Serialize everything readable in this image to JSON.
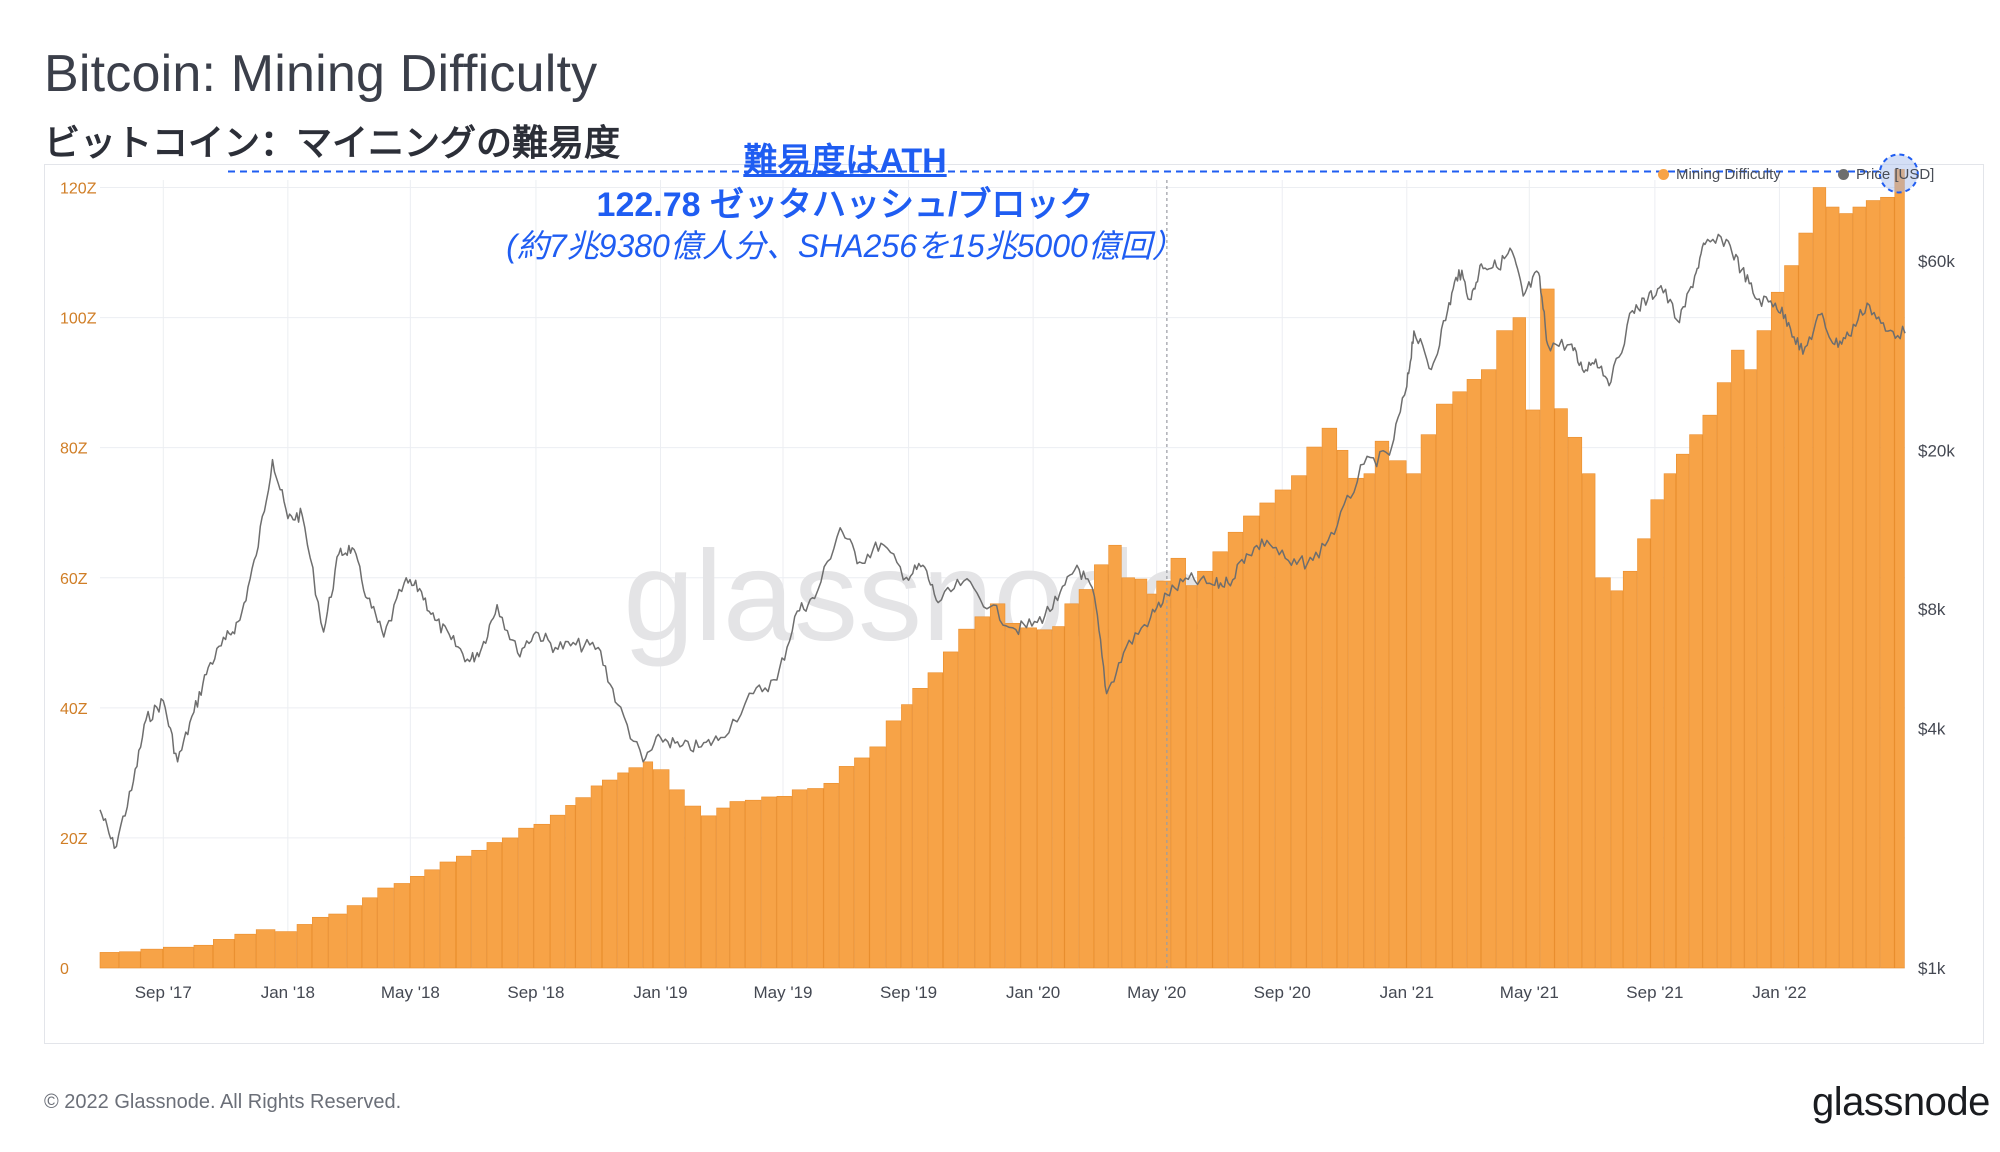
{
  "header": {
    "title": "Bitcoin: Mining Difficulty",
    "subtitle": "ビットコイン：マイニングの難易度"
  },
  "annotation": {
    "line1": "難易度はATH",
    "line2": "122.78 ゼッタハッシュ/ブロック",
    "line3": "(約7兆9380億人分、SHA256を15兆5000億回）"
  },
  "legend": {
    "difficulty_label": "Mining Difficulty",
    "price_label": "Price [USD]"
  },
  "colors": {
    "difficulty": "#f7a347",
    "difficulty_edge": "#e98d2c",
    "price": "#6e6e6e",
    "annotation": "#1f5df2",
    "grid": "#eceef2",
    "watermark": "#e4e4e6"
  },
  "watermark": "glassnode",
  "footer": {
    "copyright": "© 2022 Glassnode. All Rights Reserved.",
    "logo": "glassnode"
  },
  "chart_data": {
    "type": "bar",
    "x_ticks": [
      "Sep '17",
      "Jan '18",
      "May '18",
      "Sep '18",
      "Jan '19",
      "May '19",
      "Sep '19",
      "Jan '20",
      "May '20",
      "Sep '20",
      "Jan '21",
      "May '21",
      "Sep '21",
      "Jan '22"
    ],
    "x_range": [
      "2017-07-01",
      "2022-05-04"
    ],
    "y_left": {
      "ticks": [
        "0",
        "20Z",
        "40Z",
        "60Z",
        "80Z",
        "100Z",
        "120Z"
      ],
      "ylim": [
        0,
        120
      ]
    },
    "y_right": {
      "ticks": [
        "$1k",
        "$4k",
        "$8k",
        "$20k",
        "$60k"
      ],
      "scale": "log",
      "ylim": [
        1000,
        60000
      ]
    },
    "ath_value": 122.78,
    "vertical_marker_date": "2020-05-11",
    "series": [
      {
        "name": "Mining Difficulty",
        "type": "bar",
        "axis": "left",
        "points": [
          [
            "2017-07-01",
            2.4
          ],
          [
            "2017-07-20",
            2.5
          ],
          [
            "2017-08-10",
            2.9
          ],
          [
            "2017-09-01",
            3.2
          ],
          [
            "2017-10-01",
            3.5
          ],
          [
            "2017-10-20",
            4.4
          ],
          [
            "2017-11-10",
            5.2
          ],
          [
            "2017-12-01",
            5.9
          ],
          [
            "2017-12-20",
            5.6
          ],
          [
            "2018-01-10",
            6.7
          ],
          [
            "2018-01-25",
            7.8
          ],
          [
            "2018-02-10",
            8.3
          ],
          [
            "2018-02-28",
            9.6
          ],
          [
            "2018-03-15",
            10.8
          ],
          [
            "2018-03-30",
            12.3
          ],
          [
            "2018-04-15",
            13.0
          ],
          [
            "2018-05-01",
            14.1
          ],
          [
            "2018-05-15",
            15.1
          ],
          [
            "2018-05-30",
            16.3
          ],
          [
            "2018-06-15",
            17.2
          ],
          [
            "2018-06-30",
            18.1
          ],
          [
            "2018-07-15",
            19.3
          ],
          [
            "2018-07-30",
            20.0
          ],
          [
            "2018-08-15",
            21.5
          ],
          [
            "2018-08-30",
            22.1
          ],
          [
            "2018-09-15",
            23.5
          ],
          [
            "2018-09-30",
            25.0
          ],
          [
            "2018-10-10",
            26.2
          ],
          [
            "2018-10-25",
            28.0
          ],
          [
            "2018-11-05",
            28.9
          ],
          [
            "2018-11-20",
            30.0
          ],
          [
            "2018-12-01",
            30.8
          ],
          [
            "2018-12-15",
            31.7
          ],
          [
            "2018-12-25",
            30.5
          ],
          [
            "2019-01-10",
            27.4
          ],
          [
            "2019-01-25",
            24.9
          ],
          [
            "2019-02-10",
            23.4
          ],
          [
            "2019-02-25",
            24.6
          ],
          [
            "2019-03-10",
            25.6
          ],
          [
            "2019-03-25",
            25.8
          ],
          [
            "2019-04-10",
            26.3
          ],
          [
            "2019-04-25",
            26.4
          ],
          [
            "2019-05-10",
            27.4
          ],
          [
            "2019-05-25",
            27.6
          ],
          [
            "2019-06-10",
            28.4
          ],
          [
            "2019-06-25",
            31.0
          ],
          [
            "2019-07-10",
            32.3
          ],
          [
            "2019-07-25",
            34.0
          ],
          [
            "2019-08-10",
            38.0
          ],
          [
            "2019-08-25",
            40.5
          ],
          [
            "2019-09-05",
            43.0
          ],
          [
            "2019-09-20",
            45.4
          ],
          [
            "2019-10-05",
            48.6
          ],
          [
            "2019-10-20",
            52.1
          ],
          [
            "2019-11-05",
            54.0
          ],
          [
            "2019-11-20",
            56.0
          ],
          [
            "2019-12-05",
            53.0
          ],
          [
            "2019-12-20",
            52.3
          ],
          [
            "2020-01-05",
            52.0
          ],
          [
            "2020-01-20",
            52.5
          ],
          [
            "2020-02-01",
            56.0
          ],
          [
            "2020-02-15",
            58.2
          ],
          [
            "2020-03-01",
            62.0
          ],
          [
            "2020-03-15",
            65.0
          ],
          [
            "2020-03-28",
            60.0
          ],
          [
            "2020-04-10",
            59.8
          ],
          [
            "2020-04-22",
            57.5
          ],
          [
            "2020-05-01",
            59.5
          ],
          [
            "2020-05-15",
            63.0
          ],
          [
            "2020-05-30",
            58.8
          ],
          [
            "2020-06-10",
            61.0
          ],
          [
            "2020-06-25",
            64.0
          ],
          [
            "2020-07-10",
            67.0
          ],
          [
            "2020-07-25",
            69.5
          ],
          [
            "2020-08-10",
            71.5
          ],
          [
            "2020-08-25",
            73.5
          ],
          [
            "2020-09-10",
            75.7
          ],
          [
            "2020-09-25",
            80.1
          ],
          [
            "2020-10-10",
            83.0
          ],
          [
            "2020-10-25",
            79.6
          ],
          [
            "2020-11-05",
            75.3
          ],
          [
            "2020-11-20",
            76.0
          ],
          [
            "2020-12-01",
            81.0
          ],
          [
            "2020-12-15",
            78.0
          ],
          [
            "2021-01-01",
            76.0
          ],
          [
            "2021-01-15",
            82.0
          ],
          [
            "2021-01-30",
            86.7
          ],
          [
            "2021-02-15",
            88.6
          ],
          [
            "2021-03-01",
            90.5
          ],
          [
            "2021-03-15",
            92.0
          ],
          [
            "2021-03-30",
            98.0
          ],
          [
            "2021-04-15",
            100.0
          ],
          [
            "2021-04-28",
            85.8
          ],
          [
            "2021-05-12",
            104.4
          ],
          [
            "2021-05-26",
            86.0
          ],
          [
            "2021-06-08",
            81.6
          ],
          [
            "2021-06-22",
            76.0
          ],
          [
            "2021-07-05",
            60.0
          ],
          [
            "2021-07-20",
            58.0
          ],
          [
            "2021-08-01",
            61.0
          ],
          [
            "2021-08-15",
            66.0
          ],
          [
            "2021-08-28",
            72.0
          ],
          [
            "2021-09-10",
            76.0
          ],
          [
            "2021-09-22",
            79.0
          ],
          [
            "2021-10-05",
            82.0
          ],
          [
            "2021-10-18",
            85.0
          ],
          [
            "2021-11-01",
            90.0
          ],
          [
            "2021-11-15",
            95.0
          ],
          [
            "2021-11-28",
            92.0
          ],
          [
            "2021-12-10",
            98.0
          ],
          [
            "2021-12-24",
            103.9
          ],
          [
            "2022-01-06",
            108.0
          ],
          [
            "2022-01-20",
            113.0
          ],
          [
            "2022-02-03",
            120.0
          ],
          [
            "2022-02-16",
            117.0
          ],
          [
            "2022-03-01",
            116.0
          ],
          [
            "2022-03-14",
            117.0
          ],
          [
            "2022-03-27",
            118.0
          ],
          [
            "2022-04-10",
            118.5
          ],
          [
            "2022-04-24",
            122.78
          ]
        ]
      },
      {
        "name": "Price [USD]",
        "type": "line",
        "axis": "right",
        "points": [
          [
            "2017-07-01",
            2500
          ],
          [
            "2017-07-15",
            2000
          ],
          [
            "2017-08-01",
            2800
          ],
          [
            "2017-08-15",
            4200
          ],
          [
            "2017-09-01",
            4700
          ],
          [
            "2017-09-15",
            3300
          ],
          [
            "2017-10-01",
            4400
          ],
          [
            "2017-10-15",
            5700
          ],
          [
            "2017-11-01",
            6700
          ],
          [
            "2017-11-15",
            7500
          ],
          [
            "2017-12-01",
            10900
          ],
          [
            "2017-12-17",
            19000
          ],
          [
            "2018-01-01",
            13500
          ],
          [
            "2018-01-15",
            13800
          ],
          [
            "2018-02-05",
            7000
          ],
          [
            "2018-02-20",
            11000
          ],
          [
            "2018-03-05",
            11400
          ],
          [
            "2018-03-20",
            8500
          ],
          [
            "2018-04-05",
            6800
          ],
          [
            "2018-04-25",
            9300
          ],
          [
            "2018-05-10",
            9000
          ],
          [
            "2018-05-25",
            7500
          ],
          [
            "2018-06-10",
            6700
          ],
          [
            "2018-06-28",
            5900
          ],
          [
            "2018-07-10",
            6400
          ],
          [
            "2018-07-25",
            8200
          ],
          [
            "2018-08-14",
            6200
          ],
          [
            "2018-09-01",
            7000
          ],
          [
            "2018-09-20",
            6400
          ],
          [
            "2018-10-10",
            6500
          ],
          [
            "2018-11-01",
            6400
          ],
          [
            "2018-11-20",
            4600
          ],
          [
            "2018-12-15",
            3300
          ],
          [
            "2019-01-01",
            3800
          ],
          [
            "2019-01-20",
            3600
          ],
          [
            "2019-02-10",
            3600
          ],
          [
            "2019-03-01",
            3800
          ],
          [
            "2019-04-02",
            4900
          ],
          [
            "2019-04-25",
            5300
          ],
          [
            "2019-05-15",
            7900
          ],
          [
            "2019-06-01",
            8500
          ],
          [
            "2019-06-26",
            12800
          ],
          [
            "2019-07-15",
            10500
          ],
          [
            "2019-08-05",
            11700
          ],
          [
            "2019-08-30",
            9600
          ],
          [
            "2019-09-15",
            10300
          ],
          [
            "2019-09-30",
            8300
          ],
          [
            "2019-10-25",
            9400
          ],
          [
            "2019-11-20",
            8100
          ],
          [
            "2019-12-15",
            7100
          ],
          [
            "2020-01-05",
            7400
          ],
          [
            "2020-01-25",
            8400
          ],
          [
            "2020-02-13",
            10300
          ],
          [
            "2020-03-01",
            8600
          ],
          [
            "2020-03-13",
            4900
          ],
          [
            "2020-04-01",
            6400
          ],
          [
            "2020-04-25",
            7600
          ],
          [
            "2020-05-11",
            8700
          ],
          [
            "2020-06-01",
            9500
          ],
          [
            "2020-06-25",
            9200
          ],
          [
            "2020-07-10",
            9300
          ],
          [
            "2020-07-28",
            11000
          ],
          [
            "2020-08-17",
            11900
          ],
          [
            "2020-09-10",
            10300
          ],
          [
            "2020-10-01",
            10600
          ],
          [
            "2020-10-25",
            13000
          ],
          [
            "2020-11-20",
            18500
          ],
          [
            "2020-12-15",
            19500
          ],
          [
            "2021-01-01",
            29000
          ],
          [
            "2021-01-08",
            40000
          ],
          [
            "2021-01-25",
            32000
          ],
          [
            "2021-02-10",
            45000
          ],
          [
            "2021-02-21",
            57000
          ],
          [
            "2021-03-05",
            48000
          ],
          [
            "2021-03-15",
            59000
          ],
          [
            "2021-03-30",
            58000
          ],
          [
            "2021-04-14",
            63500
          ],
          [
            "2021-04-25",
            49000
          ],
          [
            "2021-05-10",
            56000
          ],
          [
            "2021-05-19",
            37000
          ],
          [
            "2021-06-10",
            37000
          ],
          [
            "2021-06-22",
            32000
          ],
          [
            "2021-07-05",
            34000
          ],
          [
            "2021-07-20",
            29800
          ],
          [
            "2021-08-10",
            45000
          ],
          [
            "2021-08-25",
            48000
          ],
          [
            "2021-09-07",
            52000
          ],
          [
            "2021-09-25",
            42000
          ],
          [
            "2021-10-10",
            55000
          ],
          [
            "2021-10-20",
            66000
          ],
          [
            "2021-11-10",
            68000
          ],
          [
            "2021-11-25",
            57000
          ],
          [
            "2021-12-10",
            48000
          ],
          [
            "2021-12-28",
            47000
          ],
          [
            "2022-01-10",
            42000
          ],
          [
            "2022-01-24",
            35000
          ],
          [
            "2022-02-10",
            44000
          ],
          [
            "2022-02-24",
            37000
          ],
          [
            "2022-03-10",
            39000
          ],
          [
            "2022-03-28",
            47000
          ],
          [
            "2022-04-15",
            40000
          ],
          [
            "2022-05-04",
            39500
          ]
        ]
      }
    ]
  }
}
